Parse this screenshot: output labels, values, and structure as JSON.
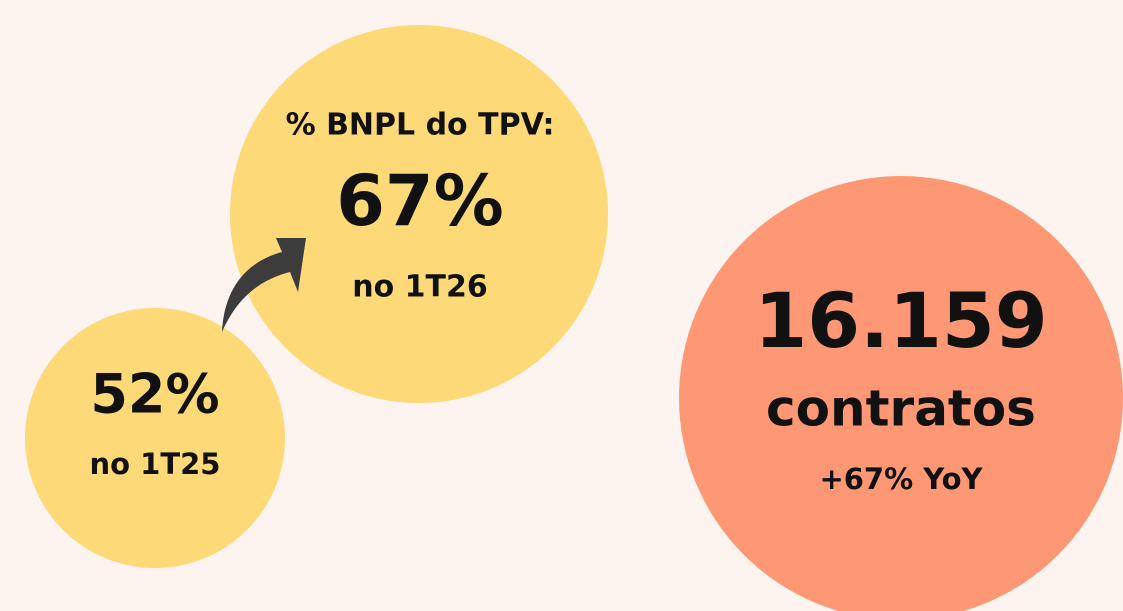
{
  "bnpl": {
    "label": "% BNPL do TPV:",
    "current": "67%",
    "current_period": "no 1T26",
    "previous": "52%",
    "previous_period": "no 1T25"
  },
  "contracts": {
    "value": "16.159",
    "unit": "contratos",
    "growth": "+67% YoY"
  }
}
